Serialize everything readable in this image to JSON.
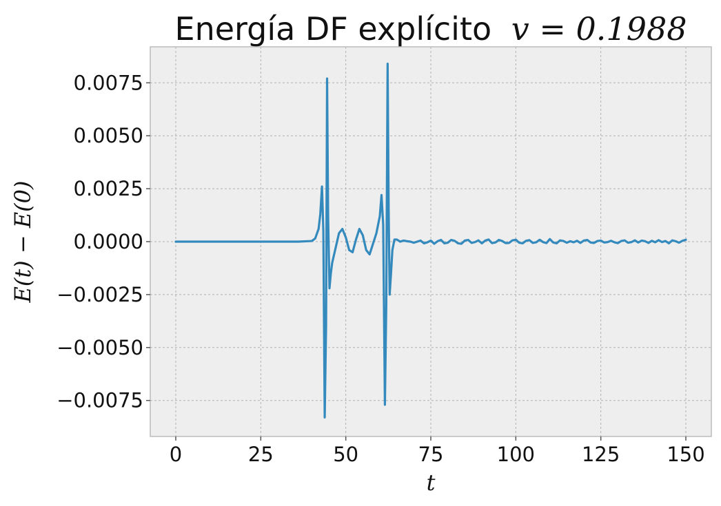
{
  "chart_data": {
    "type": "line",
    "title": "Energía DF explícito",
    "title_math": "v = 0.1988",
    "xlabel": "t",
    "ylabel": "E(t) − E(0)",
    "xlim": [
      -7.5,
      157.5
    ],
    "ylim": [
      -0.0092,
      0.0092
    ],
    "grid": true,
    "x_ticks": [
      0,
      25,
      50,
      75,
      100,
      125,
      150
    ],
    "x_tick_labels": [
      "0",
      "25",
      "50",
      "75",
      "100",
      "125",
      "150"
    ],
    "y_ticks": [
      0.0075,
      0.005,
      0.0025,
      0.0,
      -0.0025,
      -0.005,
      -0.0075
    ],
    "y_tick_labels": [
      "0.0075",
      "0.0050",
      "0.0025",
      "0.0000",
      "−0.0025",
      "−0.0050",
      "−0.0075"
    ],
    "colors": {
      "series": "#348abd",
      "plot_background": "#eeeeee",
      "frame": "#bcbcbc"
    },
    "series": [
      {
        "x": [
          0,
          10,
          20,
          30,
          36,
          40,
          41,
          42,
          42.5,
          43,
          43.4,
          43.8,
          44.2,
          44.5,
          44.8,
          45.2,
          45.6,
          46,
          47,
          48,
          49,
          50,
          51,
          52,
          53,
          54,
          55,
          56,
          57,
          58,
          59,
          60,
          60.5,
          61,
          61.5,
          61.9,
          62.3,
          62.6,
          62.9,
          63.3,
          63.7,
          64.3,
          65,
          66,
          67,
          68,
          69,
          70,
          71,
          72,
          73,
          74,
          75,
          76,
          77,
          78,
          79,
          80,
          81,
          82,
          83,
          84,
          85,
          86,
          87,
          88,
          89,
          90,
          91,
          92,
          93,
          94,
          95,
          96,
          97,
          98,
          99,
          100,
          101,
          102,
          103,
          104,
          105,
          106,
          107,
          108,
          109,
          110,
          111,
          112,
          113,
          114,
          115,
          116,
          117,
          118,
          119,
          120,
          121,
          122,
          123,
          124,
          125,
          126,
          127,
          128,
          129,
          130,
          131,
          132,
          133,
          134,
          135,
          136,
          137,
          138,
          139,
          140,
          141,
          142,
          143,
          144,
          145,
          146,
          147,
          148,
          149,
          150
        ],
        "y": [
          0,
          0,
          0,
          0,
          0,
          3e-05,
          0.00015,
          0.0006,
          0.0013,
          0.0026,
          0.0005,
          -0.0083,
          -0.004,
          0.0077,
          0.0012,
          -0.0022,
          -0.0015,
          -0.001,
          -0.0003,
          0.0004,
          0.0006,
          0.0002,
          -0.0004,
          -0.0005,
          0.0001,
          0.0006,
          0.0003,
          -0.0004,
          -0.0006,
          -0.0001,
          0.0004,
          0.0012,
          0.0022,
          0.0008,
          -0.0077,
          -0.003,
          0.0084,
          0.0015,
          -0.0025,
          -0.0015,
          -0.0004,
          0.0001,
          0.0001,
          0,
          5e-05,
          2e-05,
          0,
          -5e-05,
          0,
          5e-05,
          -8e-05,
          -3e-05,
          5e-05,
          -0.0001,
          2e-05,
          8e-05,
          -8e-05,
          -5e-05,
          8e-05,
          4e-05,
          -8e-05,
          -0.0001,
          5e-05,
          8e-05,
          -6e-05,
          -2e-05,
          6e-05,
          -8e-05,
          5e-05,
          0.0001,
          -7e-05,
          -4e-05,
          8e-05,
          3e-05,
          -7e-05,
          -6e-05,
          6e-05,
          9e-05,
          -5e-05,
          -8e-05,
          4e-05,
          7e-05,
          -6e-05,
          -3e-05,
          9e-05,
          -2e-05,
          -7e-05,
          0.00012,
          -4e-05,
          -8e-05,
          6e-05,
          3e-05,
          -5e-05,
          2e-05,
          -3e-05,
          4e-05,
          -6e-05,
          5e-05,
          8e-05,
          -4e-05,
          -6e-05,
          3e-05,
          5e-05,
          -4e-05,
          -2e-05,
          4e-05,
          -3e-05,
          -7e-05,
          3e-05,
          6e-05,
          -5e-05,
          -2e-05,
          6e-05,
          -4e-05,
          5e-05,
          2e-05,
          -6e-05,
          4e-05,
          -3e-05,
          7e-05,
          -2e-05,
          3e-05,
          -8e-05,
          6e-05,
          2e-05,
          -5e-05,
          4e-05,
          9e-05
        ]
      }
    ]
  }
}
